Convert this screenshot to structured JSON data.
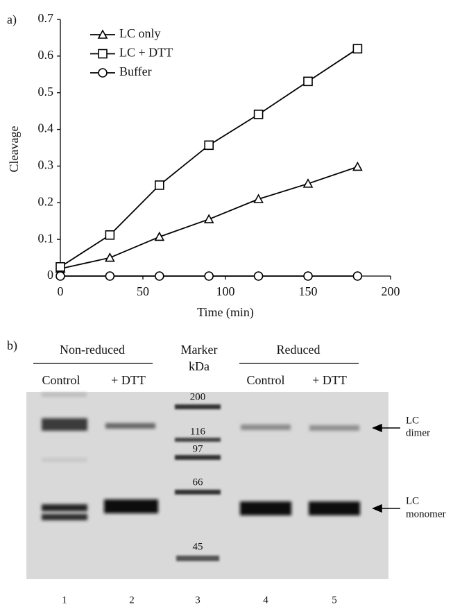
{
  "chart_data": {
    "type": "line",
    "panel_label": "a)",
    "x_label": "Time (min)",
    "y_label": "Cleavage",
    "x": [
      0,
      30,
      60,
      90,
      120,
      150,
      180
    ],
    "series": [
      {
        "name": "LC only",
        "color": "#000000",
        "marker": "triangle",
        "values": [
          0.02,
          0.05,
          0.107,
          0.155,
          0.21,
          0.252,
          0.298
        ]
      },
      {
        "name": "LC + DTT",
        "color": "#000000",
        "marker": "square",
        "values": [
          0.025,
          0.112,
          0.248,
          0.357,
          0.441,
          0.531,
          0.62
        ]
      },
      {
        "name": "Buffer",
        "color": "#000000",
        "marker": "circle",
        "values": [
          0,
          0,
          0,
          0,
          0,
          0,
          0
        ]
      }
    ],
    "xlim": [
      0,
      200
    ],
    "xticks": [
      0,
      50,
      100,
      150,
      200
    ],
    "ylim": [
      0,
      0.7
    ],
    "yticks": [
      0,
      0.1,
      0.2,
      0.3,
      0.4,
      0.5,
      0.6,
      0.7
    ],
    "legend": "upper-left",
    "grid": false
  },
  "gel": {
    "panel_label": "b)",
    "non_reduced": "Non-reduced",
    "marker_title": "Marker",
    "marker_unit": "kDa",
    "reduced": "Reduced",
    "lanes_nonreduced": [
      "Control",
      "+ DTT"
    ],
    "lanes_reduced": [
      "Control",
      "+ DTT"
    ],
    "marker_labels": [
      "200",
      "116",
      "97",
      "66",
      "45"
    ],
    "dimer_label": [
      "LC",
      "dimer"
    ],
    "monomer_label": [
      "LC",
      "monomer"
    ],
    "lane_numbers": [
      "1",
      "2",
      "3",
      "4",
      "5"
    ]
  }
}
